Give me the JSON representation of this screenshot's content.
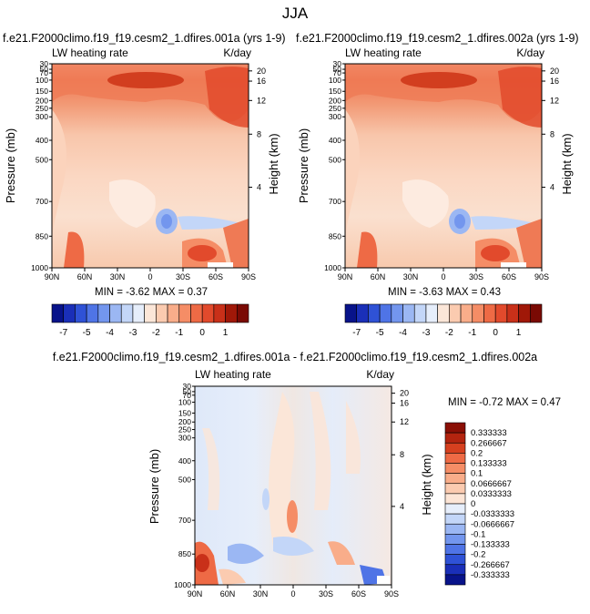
{
  "page_title": "JJA",
  "panels": [
    {
      "title": "f.e21.F2000climo.f19_f19.cesm2_1.dfires.001a (yrs 1-9)",
      "left_label": "LW heating rate",
      "right_label": "K/day",
      "stats": "MIN = -3.62   MAX =  0.37",
      "ylabel": "Pressure (mb)",
      "ylabel_right": "Height (km)",
      "pressure_ticks": [
        "30",
        "50",
        "70",
        "100",
        "150",
        "200",
        "250",
        "300",
        "400",
        "500",
        "700",
        "850",
        "1000"
      ],
      "height_ticks": [
        "20",
        "16",
        "12",
        "8",
        "4"
      ],
      "x_ticks": [
        "90N",
        "60N",
        "30N",
        "0",
        "30S",
        "60S",
        "90S"
      ]
    },
    {
      "title": "f.e21.F2000climo.f19_f19.cesm2_1.dfires.002a (yrs 1-9)",
      "left_label": "LW heating rate",
      "right_label": "K/day",
      "stats": "MIN = -3.63   MAX =  0.43",
      "ylabel": "Pressure (mb)",
      "ylabel_right": "Height (km)",
      "pressure_ticks": [
        "30",
        "50",
        "70",
        "100",
        "150",
        "200",
        "250",
        "300",
        "400",
        "500",
        "700",
        "850",
        "1000"
      ],
      "height_ticks": [
        "20",
        "16",
        "12",
        "8",
        "4"
      ],
      "x_ticks": [
        "90N",
        "60N",
        "30N",
        "0",
        "30S",
        "60S",
        "90S"
      ]
    },
    {
      "title": "f.e21.F2000climo.f19_f19.cesm2_1.dfires.001a - f.e21.F2000climo.f19_f19.cesm2_1.dfires.002a",
      "left_label": "LW heating rate",
      "right_label": "K/day",
      "stats": "MIN = -0.72   MAX =  0.47",
      "ylabel": "Pressure (mb)",
      "ylabel_right": "Height (km)",
      "pressure_ticks": [
        "30",
        "50",
        "70",
        "100",
        "150",
        "200",
        "250",
        "300",
        "400",
        "500",
        "700",
        "850",
        "1000"
      ],
      "height_ticks": [
        "20",
        "16",
        "12",
        "8",
        "4"
      ],
      "x_ticks": [
        "90N",
        "60N",
        "30N",
        "0",
        "30S",
        "60S",
        "90S"
      ]
    }
  ],
  "colorbar_h": {
    "labels": [
      "-7",
      "-5",
      "-4",
      "-3",
      "-2",
      "-1",
      "0",
      "1"
    ],
    "colors": [
      "#08138a",
      "#1a2fb8",
      "#2f52d6",
      "#4f74e6",
      "#7396ee",
      "#9bb7f3",
      "#c3d6f8",
      "#e6eefb",
      "#fbe6d8",
      "#fbcbb0",
      "#f9ad8a",
      "#f58d66",
      "#ee6a45",
      "#e24a2c",
      "#c93019",
      "#a01808",
      "#7a0a04"
    ]
  },
  "colorbar_v": {
    "labels": [
      "0.333333",
      "0.266667",
      "0.2",
      "0.133333",
      "0.1",
      "0.0666667",
      "0.0333333",
      "0",
      "-0.0333333",
      "-0.0666667",
      "-0.1",
      "-0.133333",
      "-0.2",
      "-0.266667",
      "-0.333333"
    ],
    "colors": [
      "#8a0f05",
      "#b3240f",
      "#d6401f",
      "#ee6a45",
      "#f58d66",
      "#f9ad8a",
      "#fbcbb0",
      "#fce5d6",
      "#e6eefb",
      "#c3d6f8",
      "#9bb7f3",
      "#7396ee",
      "#4f74e6",
      "#2f52d6",
      "#1a2fb8",
      "#08138a"
    ]
  },
  "chart_data": [
    {
      "type": "heatmap",
      "title": "f.e21.F2000climo.f19_f19.cesm2_1.dfires.001a (yrs 1-9)",
      "variable": "LW heating rate",
      "units": "K/day",
      "xlabel": "",
      "ylabel": "Pressure (mb)",
      "ylabel_right": "Height (km)",
      "x_ticks": [
        "90N",
        "60N",
        "30N",
        "0",
        "30S",
        "60S",
        "90S"
      ],
      "y_ticks": [
        30,
        50,
        70,
        100,
        150,
        200,
        250,
        300,
        400,
        500,
        700,
        850,
        1000
      ],
      "min": -3.62,
      "max": 0.37
    },
    {
      "type": "heatmap",
      "title": "f.e21.F2000climo.f19_f19.cesm2_1.dfires.002a (yrs 1-9)",
      "variable": "LW heating rate",
      "units": "K/day",
      "xlabel": "",
      "ylabel": "Pressure (mb)",
      "ylabel_right": "Height (km)",
      "x_ticks": [
        "90N",
        "60N",
        "30N",
        "0",
        "30S",
        "60S",
        "90S"
      ],
      "y_ticks": [
        30,
        50,
        70,
        100,
        150,
        200,
        250,
        300,
        400,
        500,
        700,
        850,
        1000
      ],
      "min": -3.63,
      "max": 0.43
    },
    {
      "type": "heatmap",
      "title": "f.e21.F2000climo.f19_f19.cesm2_1.dfires.001a - f.e21.F2000climo.f19_f19.cesm2_1.dfires.002a",
      "variable": "LW heating rate",
      "units": "K/day",
      "xlabel": "",
      "ylabel": "Pressure (mb)",
      "ylabel_right": "Height (km)",
      "x_ticks": [
        "90N",
        "60N",
        "30N",
        "0",
        "30S",
        "60S",
        "90S"
      ],
      "y_ticks": [
        30,
        50,
        70,
        100,
        150,
        200,
        250,
        300,
        400,
        500,
        700,
        850,
        1000
      ],
      "min": -0.72,
      "max": 0.47
    }
  ]
}
